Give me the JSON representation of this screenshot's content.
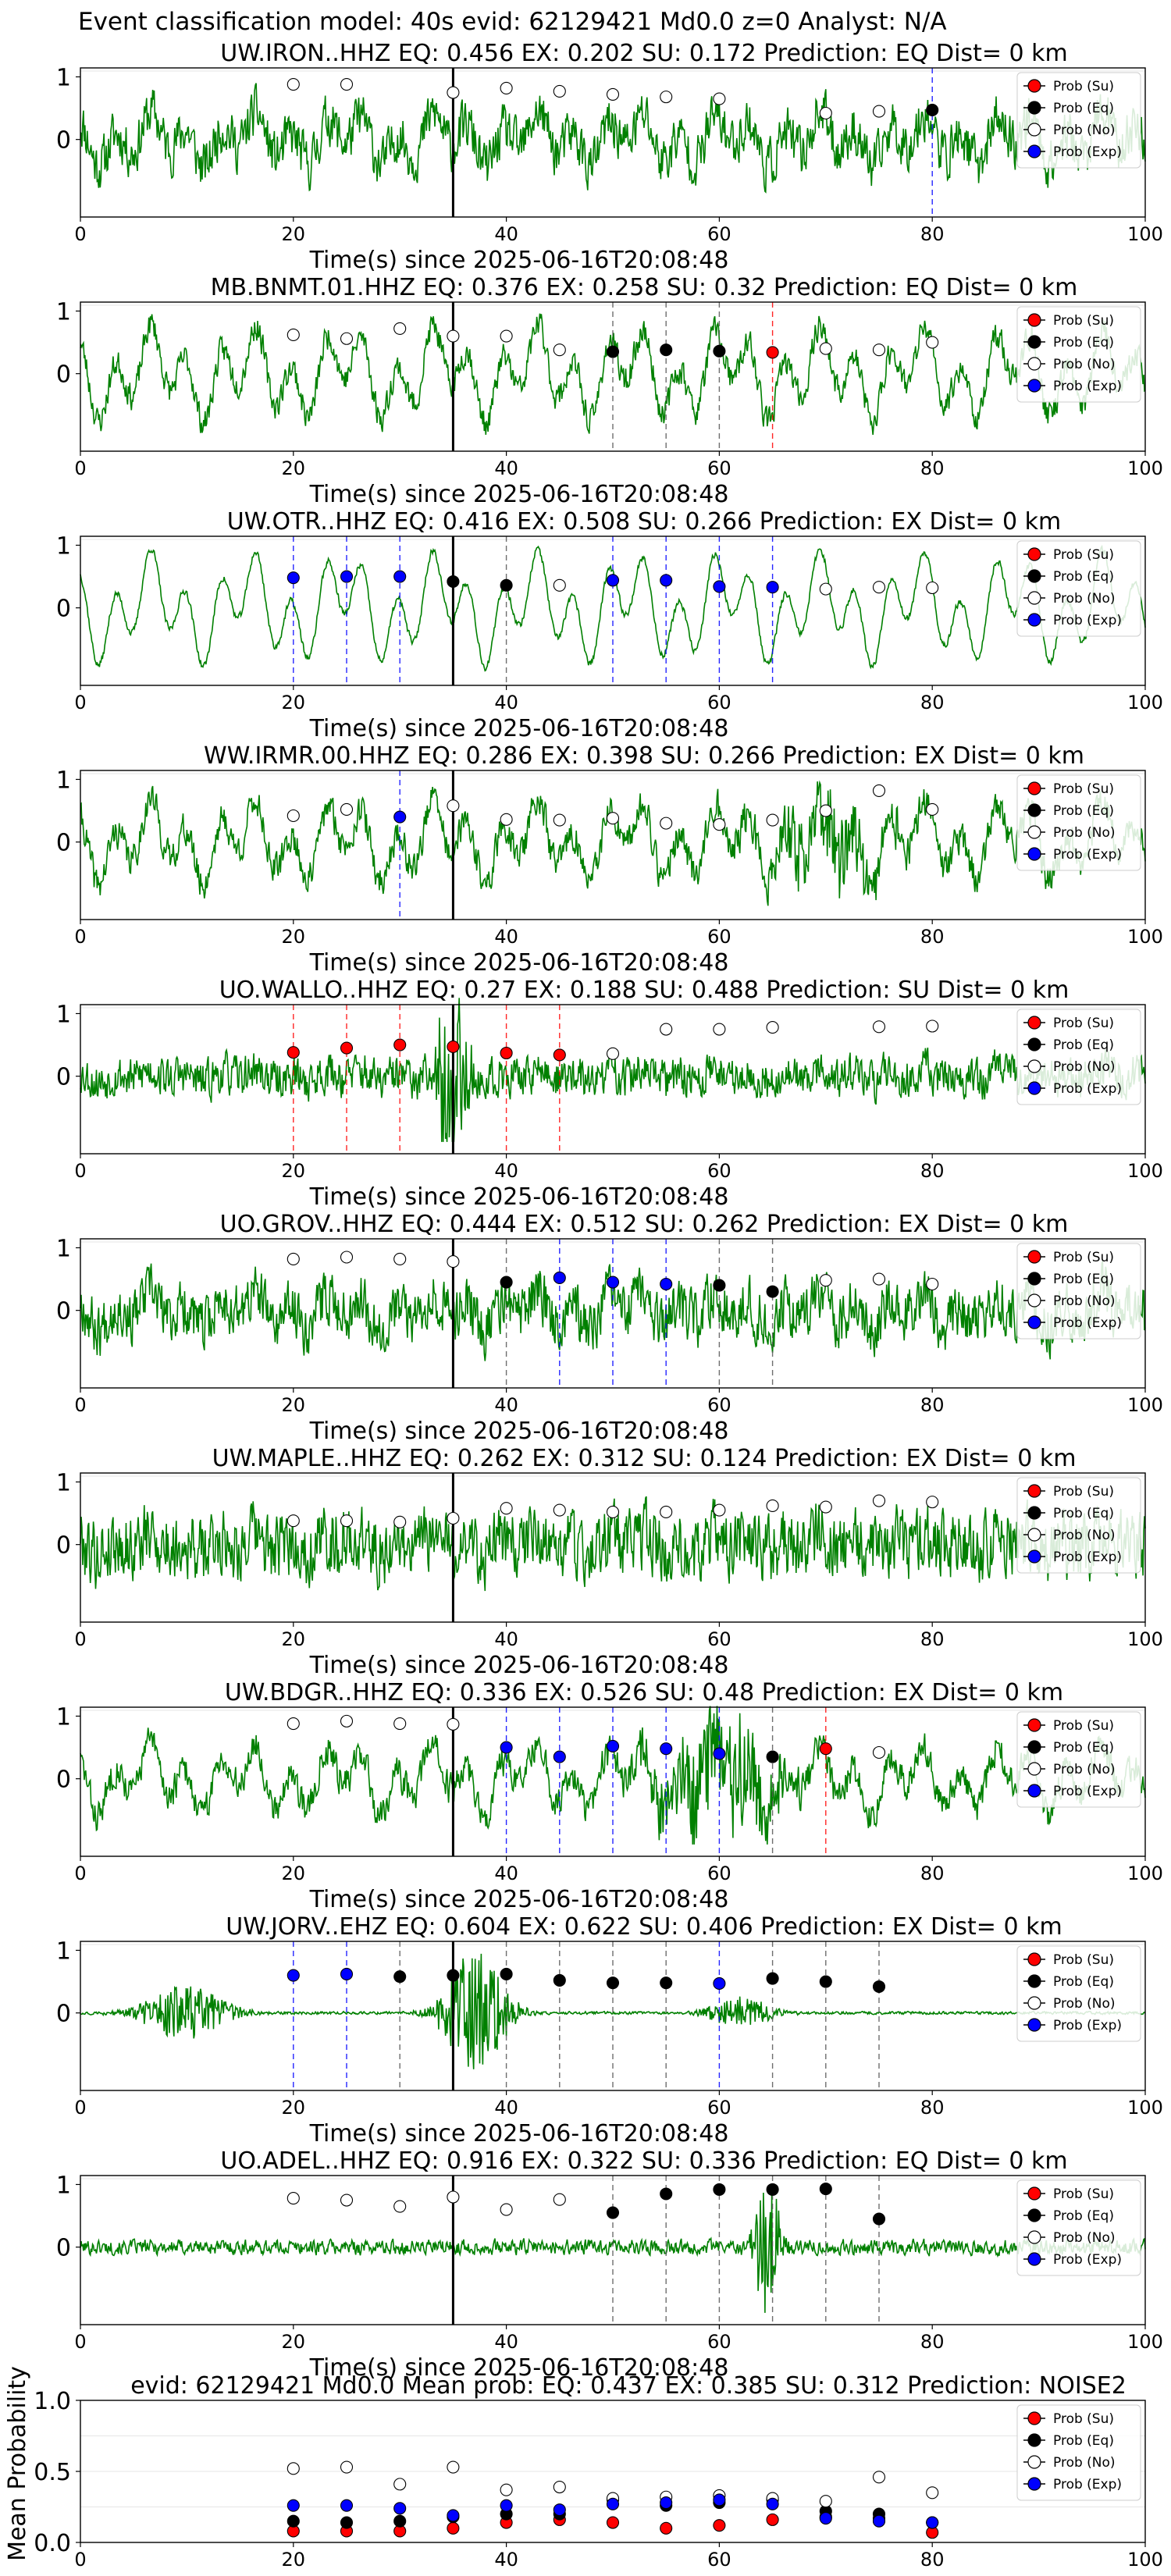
{
  "suptitle": "Event classification model: 40s evid: 62129421 Md0.0 z=0 Analyst: N/A",
  "xlabel": "Time(s) since 2025-06-16T20:08:48",
  "legend": [
    "Prob (Su)",
    "Prob (Eq)",
    "Prob (No)",
    "Prob (Exp)"
  ],
  "colors": {
    "Su": "#ff0000",
    "Eq": "#000000",
    "No": "#ffffff",
    "Exp": "#0000ff",
    "trace": "#008000"
  },
  "x_ticks": [
    "0",
    "20",
    "40",
    "60",
    "80",
    "100"
  ],
  "chart_data": [
    {
      "type": "line+scatter",
      "title": "UW.IRON..HHZ   EQ: 0.456  EX: 0.202  SU: 0.172   Prediction: EQ    Dist= 0 km",
      "xlim": [
        0,
        100
      ],
      "y_ticks": [
        "1",
        "0"
      ],
      "seed": 11,
      "noise": 0.55,
      "low": 0.45,
      "bursts": [],
      "pick": 35,
      "points": [
        {
          "x": 20,
          "y": 0.88,
          "c": "No"
        },
        {
          "x": 25,
          "y": 0.88,
          "c": "No"
        },
        {
          "x": 35,
          "y": 0.75,
          "c": "No"
        },
        {
          "x": 40,
          "y": 0.82,
          "c": "No"
        },
        {
          "x": 45,
          "y": 0.77,
          "c": "No"
        },
        {
          "x": 50,
          "y": 0.72,
          "c": "No"
        },
        {
          "x": 55,
          "y": 0.68,
          "c": "No"
        },
        {
          "x": 60,
          "y": 0.65,
          "c": "No"
        },
        {
          "x": 70,
          "y": 0.42,
          "c": "No"
        },
        {
          "x": 75,
          "y": 0.45,
          "c": "No"
        },
        {
          "x": 80,
          "y": 0.47,
          "c": "Eq"
        }
      ],
      "vlines": [
        {
          "x": 80,
          "c": "Exp"
        }
      ]
    },
    {
      "type": "line+scatter",
      "title": "MB.BNMT.01.HHZ   EQ: 0.376  EX: 0.258  SU: 0.32   Prediction: EQ    Dist= 0 km",
      "xlim": [
        0,
        100
      ],
      "y_ticks": [
        "1",
        "0"
      ],
      "seed": 23,
      "noise": 0.3,
      "low": 0.8,
      "bursts": [],
      "pick": 35,
      "points": [
        {
          "x": 20,
          "y": 0.62,
          "c": "No"
        },
        {
          "x": 25,
          "y": 0.56,
          "c": "No"
        },
        {
          "x": 30,
          "y": 0.72,
          "c": "No"
        },
        {
          "x": 35,
          "y": 0.6,
          "c": "No"
        },
        {
          "x": 40,
          "y": 0.6,
          "c": "No"
        },
        {
          "x": 45,
          "y": 0.38,
          "c": "No"
        },
        {
          "x": 50,
          "y": 0.35,
          "c": "Eq"
        },
        {
          "x": 55,
          "y": 0.38,
          "c": "Eq"
        },
        {
          "x": 60,
          "y": 0.36,
          "c": "Eq"
        },
        {
          "x": 65,
          "y": 0.34,
          "c": "Su"
        },
        {
          "x": 70,
          "y": 0.4,
          "c": "No"
        },
        {
          "x": 75,
          "y": 0.38,
          "c": "No"
        },
        {
          "x": 80,
          "y": 0.5,
          "c": "No"
        }
      ],
      "vlines": [
        {
          "x": 50,
          "c": "Eq"
        },
        {
          "x": 55,
          "c": "Eq"
        },
        {
          "x": 60,
          "c": "Eq"
        },
        {
          "x": 65,
          "c": "Su"
        }
      ]
    },
    {
      "type": "line+scatter",
      "title": "UW.OTR..HHZ   EQ: 0.416  EX: 0.508  SU: 0.266   Prediction: EX    Dist= 0 km",
      "xlim": [
        0,
        100
      ],
      "y_ticks": [
        "1",
        "0"
      ],
      "seed": 37,
      "noise": 0.08,
      "low": 0.95,
      "bursts": [],
      "pick": 35,
      "points": [
        {
          "x": 20,
          "y": 0.48,
          "c": "Exp"
        },
        {
          "x": 25,
          "y": 0.5,
          "c": "Exp"
        },
        {
          "x": 30,
          "y": 0.5,
          "c": "Exp"
        },
        {
          "x": 35,
          "y": 0.42,
          "c": "Eq"
        },
        {
          "x": 40,
          "y": 0.36,
          "c": "Eq"
        },
        {
          "x": 45,
          "y": 0.36,
          "c": "No"
        },
        {
          "x": 50,
          "y": 0.44,
          "c": "Exp"
        },
        {
          "x": 55,
          "y": 0.44,
          "c": "Exp"
        },
        {
          "x": 60,
          "y": 0.34,
          "c": "Exp"
        },
        {
          "x": 65,
          "y": 0.33,
          "c": "Exp"
        },
        {
          "x": 70,
          "y": 0.3,
          "c": "No"
        },
        {
          "x": 75,
          "y": 0.33,
          "c": "No"
        },
        {
          "x": 80,
          "y": 0.32,
          "c": "No"
        }
      ],
      "vlines": [
        {
          "x": 20,
          "c": "Exp"
        },
        {
          "x": 25,
          "c": "Exp"
        },
        {
          "x": 30,
          "c": "Exp"
        },
        {
          "x": 40,
          "c": "Eq"
        },
        {
          "x": 50,
          "c": "Exp"
        },
        {
          "x": 55,
          "c": "Exp"
        },
        {
          "x": 60,
          "c": "Exp"
        },
        {
          "x": 65,
          "c": "Exp"
        }
      ]
    },
    {
      "type": "line+scatter",
      "title": "WW.IRMR.00.HHZ   EQ: 0.286  EX: 0.398  SU: 0.266   Prediction: EX    Dist= 0 km",
      "xlim": [
        0,
        100
      ],
      "y_ticks": [
        "1",
        "0"
      ],
      "seed": 41,
      "noise": 0.35,
      "low": 0.7,
      "bursts": [
        {
          "x": 70,
          "w": 6,
          "a": 0.6
        }
      ],
      "pick": 35,
      "points": [
        {
          "x": 20,
          "y": 0.42,
          "c": "No"
        },
        {
          "x": 25,
          "y": 0.52,
          "c": "No"
        },
        {
          "x": 30,
          "y": 0.4,
          "c": "Exp"
        },
        {
          "x": 35,
          "y": 0.58,
          "c": "No"
        },
        {
          "x": 40,
          "y": 0.36,
          "c": "No"
        },
        {
          "x": 45,
          "y": 0.35,
          "c": "No"
        },
        {
          "x": 50,
          "y": 0.38,
          "c": "No"
        },
        {
          "x": 55,
          "y": 0.3,
          "c": "No"
        },
        {
          "x": 60,
          "y": 0.28,
          "c": "No"
        },
        {
          "x": 65,
          "y": 0.35,
          "c": "No"
        },
        {
          "x": 70,
          "y": 0.5,
          "c": "No"
        },
        {
          "x": 75,
          "y": 0.82,
          "c": "No"
        },
        {
          "x": 80,
          "y": 0.52,
          "c": "No"
        }
      ],
      "vlines": [
        {
          "x": 30,
          "c": "Exp"
        }
      ]
    },
    {
      "type": "line+scatter",
      "title": "UO.WALLO..HHZ   EQ: 0.27  EX: 0.188  SU: 0.488   Prediction: SU    Dist= 0 km",
      "xlim": [
        0,
        100
      ],
      "y_ticks": [
        "1",
        "0"
      ],
      "seed": 53,
      "noise": 0.45,
      "low": 0.1,
      "bursts": [
        {
          "x": 35,
          "w": 1.5,
          "a": 1.6
        }
      ],
      "pick": 35,
      "points": [
        {
          "x": 20,
          "y": 0.38,
          "c": "Su"
        },
        {
          "x": 25,
          "y": 0.45,
          "c": "Su"
        },
        {
          "x": 30,
          "y": 0.5,
          "c": "Su"
        },
        {
          "x": 35,
          "y": 0.47,
          "c": "Su"
        },
        {
          "x": 40,
          "y": 0.37,
          "c": "Su"
        },
        {
          "x": 45,
          "y": 0.34,
          "c": "Su"
        },
        {
          "x": 50,
          "y": 0.36,
          "c": "No"
        },
        {
          "x": 55,
          "y": 0.75,
          "c": "No"
        },
        {
          "x": 60,
          "y": 0.75,
          "c": "No"
        },
        {
          "x": 65,
          "y": 0.78,
          "c": "No"
        },
        {
          "x": 75,
          "y": 0.79,
          "c": "No"
        },
        {
          "x": 80,
          "y": 0.8,
          "c": "No"
        }
      ],
      "vlines": [
        {
          "x": 20,
          "c": "Su"
        },
        {
          "x": 25,
          "c": "Su"
        },
        {
          "x": 30,
          "c": "Su"
        },
        {
          "x": 35,
          "c": "Su"
        },
        {
          "x": 40,
          "c": "Su"
        },
        {
          "x": 45,
          "c": "Su"
        }
      ]
    },
    {
      "type": "line+scatter",
      "title": "UO.GROV..HHZ   EQ: 0.444  EX: 0.512  SU: 0.262   Prediction: EX    Dist= 0 km",
      "xlim": [
        0,
        100
      ],
      "y_ticks": [
        "1",
        "0"
      ],
      "seed": 67,
      "noise": 0.6,
      "low": 0.3,
      "bursts": [],
      "pick": 35,
      "points": [
        {
          "x": 20,
          "y": 0.82,
          "c": "No"
        },
        {
          "x": 25,
          "y": 0.85,
          "c": "No"
        },
        {
          "x": 30,
          "y": 0.82,
          "c": "No"
        },
        {
          "x": 35,
          "y": 0.78,
          "c": "No"
        },
        {
          "x": 40,
          "y": 0.45,
          "c": "Eq"
        },
        {
          "x": 45,
          "y": 0.52,
          "c": "Exp"
        },
        {
          "x": 50,
          "y": 0.45,
          "c": "Exp"
        },
        {
          "x": 55,
          "y": 0.42,
          "c": "Exp"
        },
        {
          "x": 60,
          "y": 0.4,
          "c": "Eq"
        },
        {
          "x": 65,
          "y": 0.3,
          "c": "Eq"
        },
        {
          "x": 70,
          "y": 0.48,
          "c": "No"
        },
        {
          "x": 75,
          "y": 0.5,
          "c": "No"
        },
        {
          "x": 80,
          "y": 0.42,
          "c": "No"
        }
      ],
      "vlines": [
        {
          "x": 40,
          "c": "Eq"
        },
        {
          "x": 45,
          "c": "Exp"
        },
        {
          "x": 50,
          "c": "Exp"
        },
        {
          "x": 55,
          "c": "Exp"
        },
        {
          "x": 60,
          "c": "Eq"
        },
        {
          "x": 65,
          "c": "Eq"
        }
      ]
    },
    {
      "type": "line+scatter",
      "title": "UW.MAPLE..HHZ   EQ: 0.262  EX: 0.312  SU: 0.124   Prediction: EX    Dist= 0 km",
      "xlim": [
        0,
        100
      ],
      "y_ticks": [
        "1",
        "0"
      ],
      "seed": 79,
      "noise": 0.75,
      "low": 0.15,
      "bursts": [],
      "pick": 35,
      "points": [
        {
          "x": 20,
          "y": 0.38,
          "c": "No"
        },
        {
          "x": 25,
          "y": 0.38,
          "c": "No"
        },
        {
          "x": 30,
          "y": 0.36,
          "c": "No"
        },
        {
          "x": 35,
          "y": 0.42,
          "c": "No"
        },
        {
          "x": 40,
          "y": 0.58,
          "c": "No"
        },
        {
          "x": 45,
          "y": 0.55,
          "c": "No"
        },
        {
          "x": 50,
          "y": 0.52,
          "c": "No"
        },
        {
          "x": 55,
          "y": 0.52,
          "c": "No"
        },
        {
          "x": 60,
          "y": 0.55,
          "c": "No"
        },
        {
          "x": 65,
          "y": 0.62,
          "c": "No"
        },
        {
          "x": 70,
          "y": 0.6,
          "c": "No"
        },
        {
          "x": 75,
          "y": 0.7,
          "c": "No"
        },
        {
          "x": 80,
          "y": 0.68,
          "c": "No"
        }
      ],
      "vlines": []
    },
    {
      "type": "line+scatter",
      "title": "UW.BDGR..HHZ   EQ: 0.336  EX: 0.526  SU: 0.48   Prediction: EX    Dist= 0 km",
      "xlim": [
        0,
        100
      ],
      "y_ticks": [
        "1",
        "0"
      ],
      "seed": 83,
      "noise": 0.35,
      "low": 0.6,
      "bursts": [
        {
          "x": 60,
          "w": 6,
          "a": 0.9
        }
      ],
      "pick": 35,
      "points": [
        {
          "x": 20,
          "y": 0.88,
          "c": "No"
        },
        {
          "x": 25,
          "y": 0.92,
          "c": "No"
        },
        {
          "x": 30,
          "y": 0.88,
          "c": "No"
        },
        {
          "x": 35,
          "y": 0.87,
          "c": "No"
        },
        {
          "x": 40,
          "y": 0.5,
          "c": "Exp"
        },
        {
          "x": 45,
          "y": 0.35,
          "c": "Exp"
        },
        {
          "x": 50,
          "y": 0.52,
          "c": "Exp"
        },
        {
          "x": 55,
          "y": 0.48,
          "c": "Exp"
        },
        {
          "x": 60,
          "y": 0.4,
          "c": "Exp"
        },
        {
          "x": 65,
          "y": 0.35,
          "c": "Eq"
        },
        {
          "x": 70,
          "y": 0.48,
          "c": "Su"
        },
        {
          "x": 75,
          "y": 0.42,
          "c": "No"
        }
      ],
      "vlines": [
        {
          "x": 40,
          "c": "Exp"
        },
        {
          "x": 45,
          "c": "Exp"
        },
        {
          "x": 50,
          "c": "Exp"
        },
        {
          "x": 55,
          "c": "Exp"
        },
        {
          "x": 60,
          "c": "Exp"
        },
        {
          "x": 65,
          "c": "Eq"
        },
        {
          "x": 70,
          "c": "Su"
        }
      ]
    },
    {
      "type": "line+scatter",
      "title": "UW.JORV..EHZ   EQ: 0.604  EX: 0.622  SU: 0.406   Prediction: EX    Dist= 0 km",
      "xlim": [
        0,
        100
      ],
      "y_ticks": [
        "1",
        "0"
      ],
      "seed": 97,
      "noise": 0.03,
      "low": 0.0,
      "bursts": [
        {
          "x": 10,
          "w": 4,
          "a": 0.45
        },
        {
          "x": 37,
          "w": 3,
          "a": 1.0
        },
        {
          "x": 62,
          "w": 3,
          "a": 0.25
        }
      ],
      "pick": 35,
      "points": [
        {
          "x": 20,
          "y": 0.6,
          "c": "Exp"
        },
        {
          "x": 25,
          "y": 0.62,
          "c": "Exp"
        },
        {
          "x": 30,
          "y": 0.58,
          "c": "Eq"
        },
        {
          "x": 35,
          "y": 0.6,
          "c": "Eq"
        },
        {
          "x": 40,
          "y": 0.62,
          "c": "Eq"
        },
        {
          "x": 45,
          "y": 0.52,
          "c": "Eq"
        },
        {
          "x": 50,
          "y": 0.48,
          "c": "Eq"
        },
        {
          "x": 55,
          "y": 0.48,
          "c": "Eq"
        },
        {
          "x": 60,
          "y": 0.47,
          "c": "Exp"
        },
        {
          "x": 65,
          "y": 0.55,
          "c": "Eq"
        },
        {
          "x": 70,
          "y": 0.5,
          "c": "Eq"
        },
        {
          "x": 75,
          "y": 0.42,
          "c": "Eq"
        }
      ],
      "vlines": [
        {
          "x": 20,
          "c": "Exp"
        },
        {
          "x": 25,
          "c": "Exp"
        },
        {
          "x": 30,
          "c": "Eq"
        },
        {
          "x": 35,
          "c": "Eq"
        },
        {
          "x": 40,
          "c": "Eq"
        },
        {
          "x": 45,
          "c": "Eq"
        },
        {
          "x": 50,
          "c": "Eq"
        },
        {
          "x": 55,
          "c": "Eq"
        },
        {
          "x": 60,
          "c": "Exp"
        },
        {
          "x": 65,
          "c": "Eq"
        },
        {
          "x": 70,
          "c": "Eq"
        },
        {
          "x": 75,
          "c": "Eq"
        }
      ]
    },
    {
      "type": "line+scatter",
      "title": "UO.ADEL..HHZ   EQ: 0.916  EX: 0.322  SU: 0.336   Prediction: EQ    Dist= 0 km",
      "xlim": [
        0,
        100
      ],
      "y_ticks": [
        "1",
        "0"
      ],
      "seed": 101,
      "noise": 0.16,
      "low": 0.0,
      "bursts": [
        {
          "x": 64.5,
          "w": 1.2,
          "a": 1.3
        }
      ],
      "pick": 35,
      "points": [
        {
          "x": 20,
          "y": 0.78,
          "c": "No"
        },
        {
          "x": 25,
          "y": 0.75,
          "c": "No"
        },
        {
          "x": 30,
          "y": 0.65,
          "c": "No"
        },
        {
          "x": 35,
          "y": 0.8,
          "c": "No"
        },
        {
          "x": 40,
          "y": 0.6,
          "c": "No"
        },
        {
          "x": 45,
          "y": 0.76,
          "c": "No"
        },
        {
          "x": 50,
          "y": 0.55,
          "c": "Eq"
        },
        {
          "x": 55,
          "y": 0.85,
          "c": "Eq"
        },
        {
          "x": 60,
          "y": 0.92,
          "c": "Eq"
        },
        {
          "x": 65,
          "y": 0.92,
          "c": "Eq"
        },
        {
          "x": 70,
          "y": 0.93,
          "c": "Eq"
        },
        {
          "x": 75,
          "y": 0.45,
          "c": "Eq"
        }
      ],
      "vlines": [
        {
          "x": 50,
          "c": "Eq"
        },
        {
          "x": 55,
          "c": "Eq"
        },
        {
          "x": 60,
          "c": "Eq"
        },
        {
          "x": 65,
          "c": "Eq"
        },
        {
          "x": 70,
          "c": "Eq"
        },
        {
          "x": 75,
          "c": "Eq"
        }
      ]
    },
    {
      "type": "scatter",
      "title": "evid: 62129421  Md0.0   Mean prob:   EQ: 0.437  EX: 0.385  SU: 0.312   Prediction: NOISE2",
      "ylabel": "Mean Probability",
      "xlim": [
        0,
        100
      ],
      "ylim": [
        0,
        1
      ],
      "y_ticks": [
        "0.0",
        "0.5",
        "1.0"
      ],
      "x": [
        20,
        25,
        30,
        35,
        40,
        45,
        50,
        55,
        60,
        65,
        70,
        75,
        80
      ],
      "series": [
        {
          "name": "Prob (Su)",
          "c": "Su",
          "values": [
            0.08,
            0.08,
            0.08,
            0.1,
            0.14,
            0.16,
            0.14,
            0.1,
            0.12,
            0.16,
            0.18,
            0.17,
            0.07
          ]
        },
        {
          "name": "Prob (Eq)",
          "c": "Eq",
          "values": [
            0.15,
            0.14,
            0.15,
            0.18,
            0.2,
            0.2,
            0.3,
            0.26,
            0.28,
            0.3,
            0.22,
            0.2,
            0.14
          ]
        },
        {
          "name": "Prob (No)",
          "c": "No",
          "values": [
            0.52,
            0.53,
            0.41,
            0.53,
            0.37,
            0.39,
            0.31,
            0.32,
            0.33,
            0.31,
            0.29,
            0.46,
            0.35
          ]
        },
        {
          "name": "Prob (Exp)",
          "c": "Exp",
          "values": [
            0.26,
            0.26,
            0.24,
            0.19,
            0.26,
            0.23,
            0.27,
            0.28,
            0.3,
            0.27,
            0.17,
            0.15,
            0.14
          ]
        }
      ]
    }
  ]
}
